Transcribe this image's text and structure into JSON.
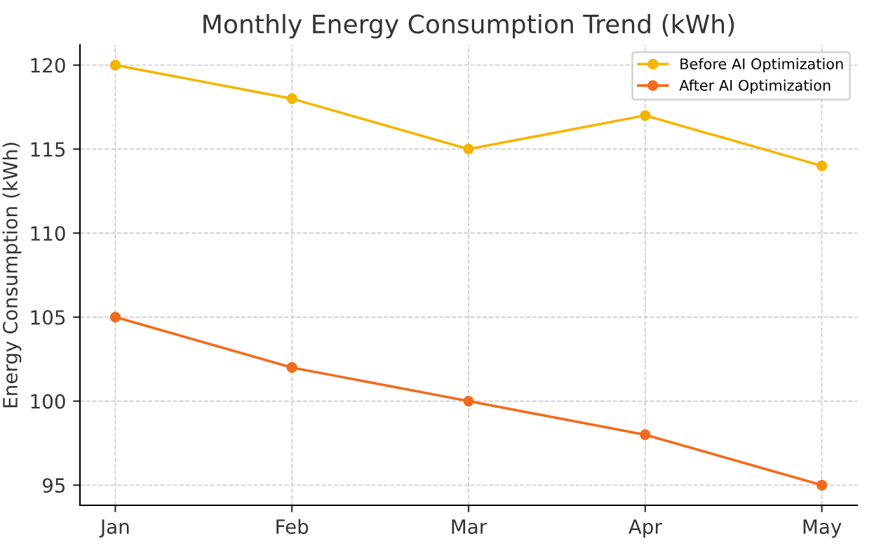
{
  "chart_data": {
    "type": "line",
    "title": "Monthly Energy Consumption Trend (kWh)",
    "ylabel": "Energy Consumption (kWh)",
    "categories": [
      "Jan",
      "Feb",
      "Mar",
      "Apr",
      "May"
    ],
    "series": [
      {
        "name": "Before AI Optimization",
        "color": "#f5b400",
        "values": [
          120,
          118,
          115,
          117,
          114
        ]
      },
      {
        "name": "After AI Optimization",
        "color": "#f26b1d",
        "values": [
          105,
          102,
          100,
          98,
          95
        ]
      }
    ],
    "ylim": [
      93.8,
      121.2
    ],
    "yticks": [
      95,
      100,
      105,
      110,
      115,
      120
    ],
    "grid": true,
    "legend": "top right",
    "marker": "circle",
    "line_style": "solid"
  }
}
